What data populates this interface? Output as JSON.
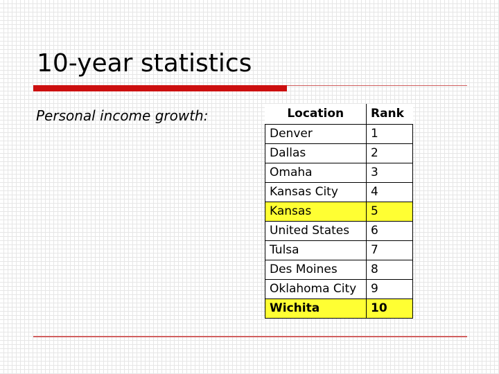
{
  "slide": {
    "title": "10-year statistics",
    "subtitle": "Personal income growth:",
    "accent_color": "#cc0f0f",
    "highlight_color": "#ffff33"
  },
  "table": {
    "headers": {
      "location": "Location",
      "rank": "Rank"
    },
    "rows": [
      {
        "location": "Denver",
        "rank": "1",
        "highlight": false,
        "bold": false
      },
      {
        "location": "Dallas",
        "rank": "2",
        "highlight": false,
        "bold": false
      },
      {
        "location": "Omaha",
        "rank": "3",
        "highlight": false,
        "bold": false
      },
      {
        "location": "Kansas City",
        "rank": "4",
        "highlight": false,
        "bold": false
      },
      {
        "location": "Kansas",
        "rank": "5",
        "highlight": true,
        "bold": false
      },
      {
        "location": "United States",
        "rank": "6",
        "highlight": false,
        "bold": false
      },
      {
        "location": "Tulsa",
        "rank": "7",
        "highlight": false,
        "bold": false
      },
      {
        "location": "Des Moines",
        "rank": "8",
        "highlight": false,
        "bold": false
      },
      {
        "location": "Oklahoma City",
        "rank": "9",
        "highlight": false,
        "bold": false
      },
      {
        "location": "Wichita",
        "rank": "10",
        "highlight": true,
        "bold": true
      }
    ]
  }
}
